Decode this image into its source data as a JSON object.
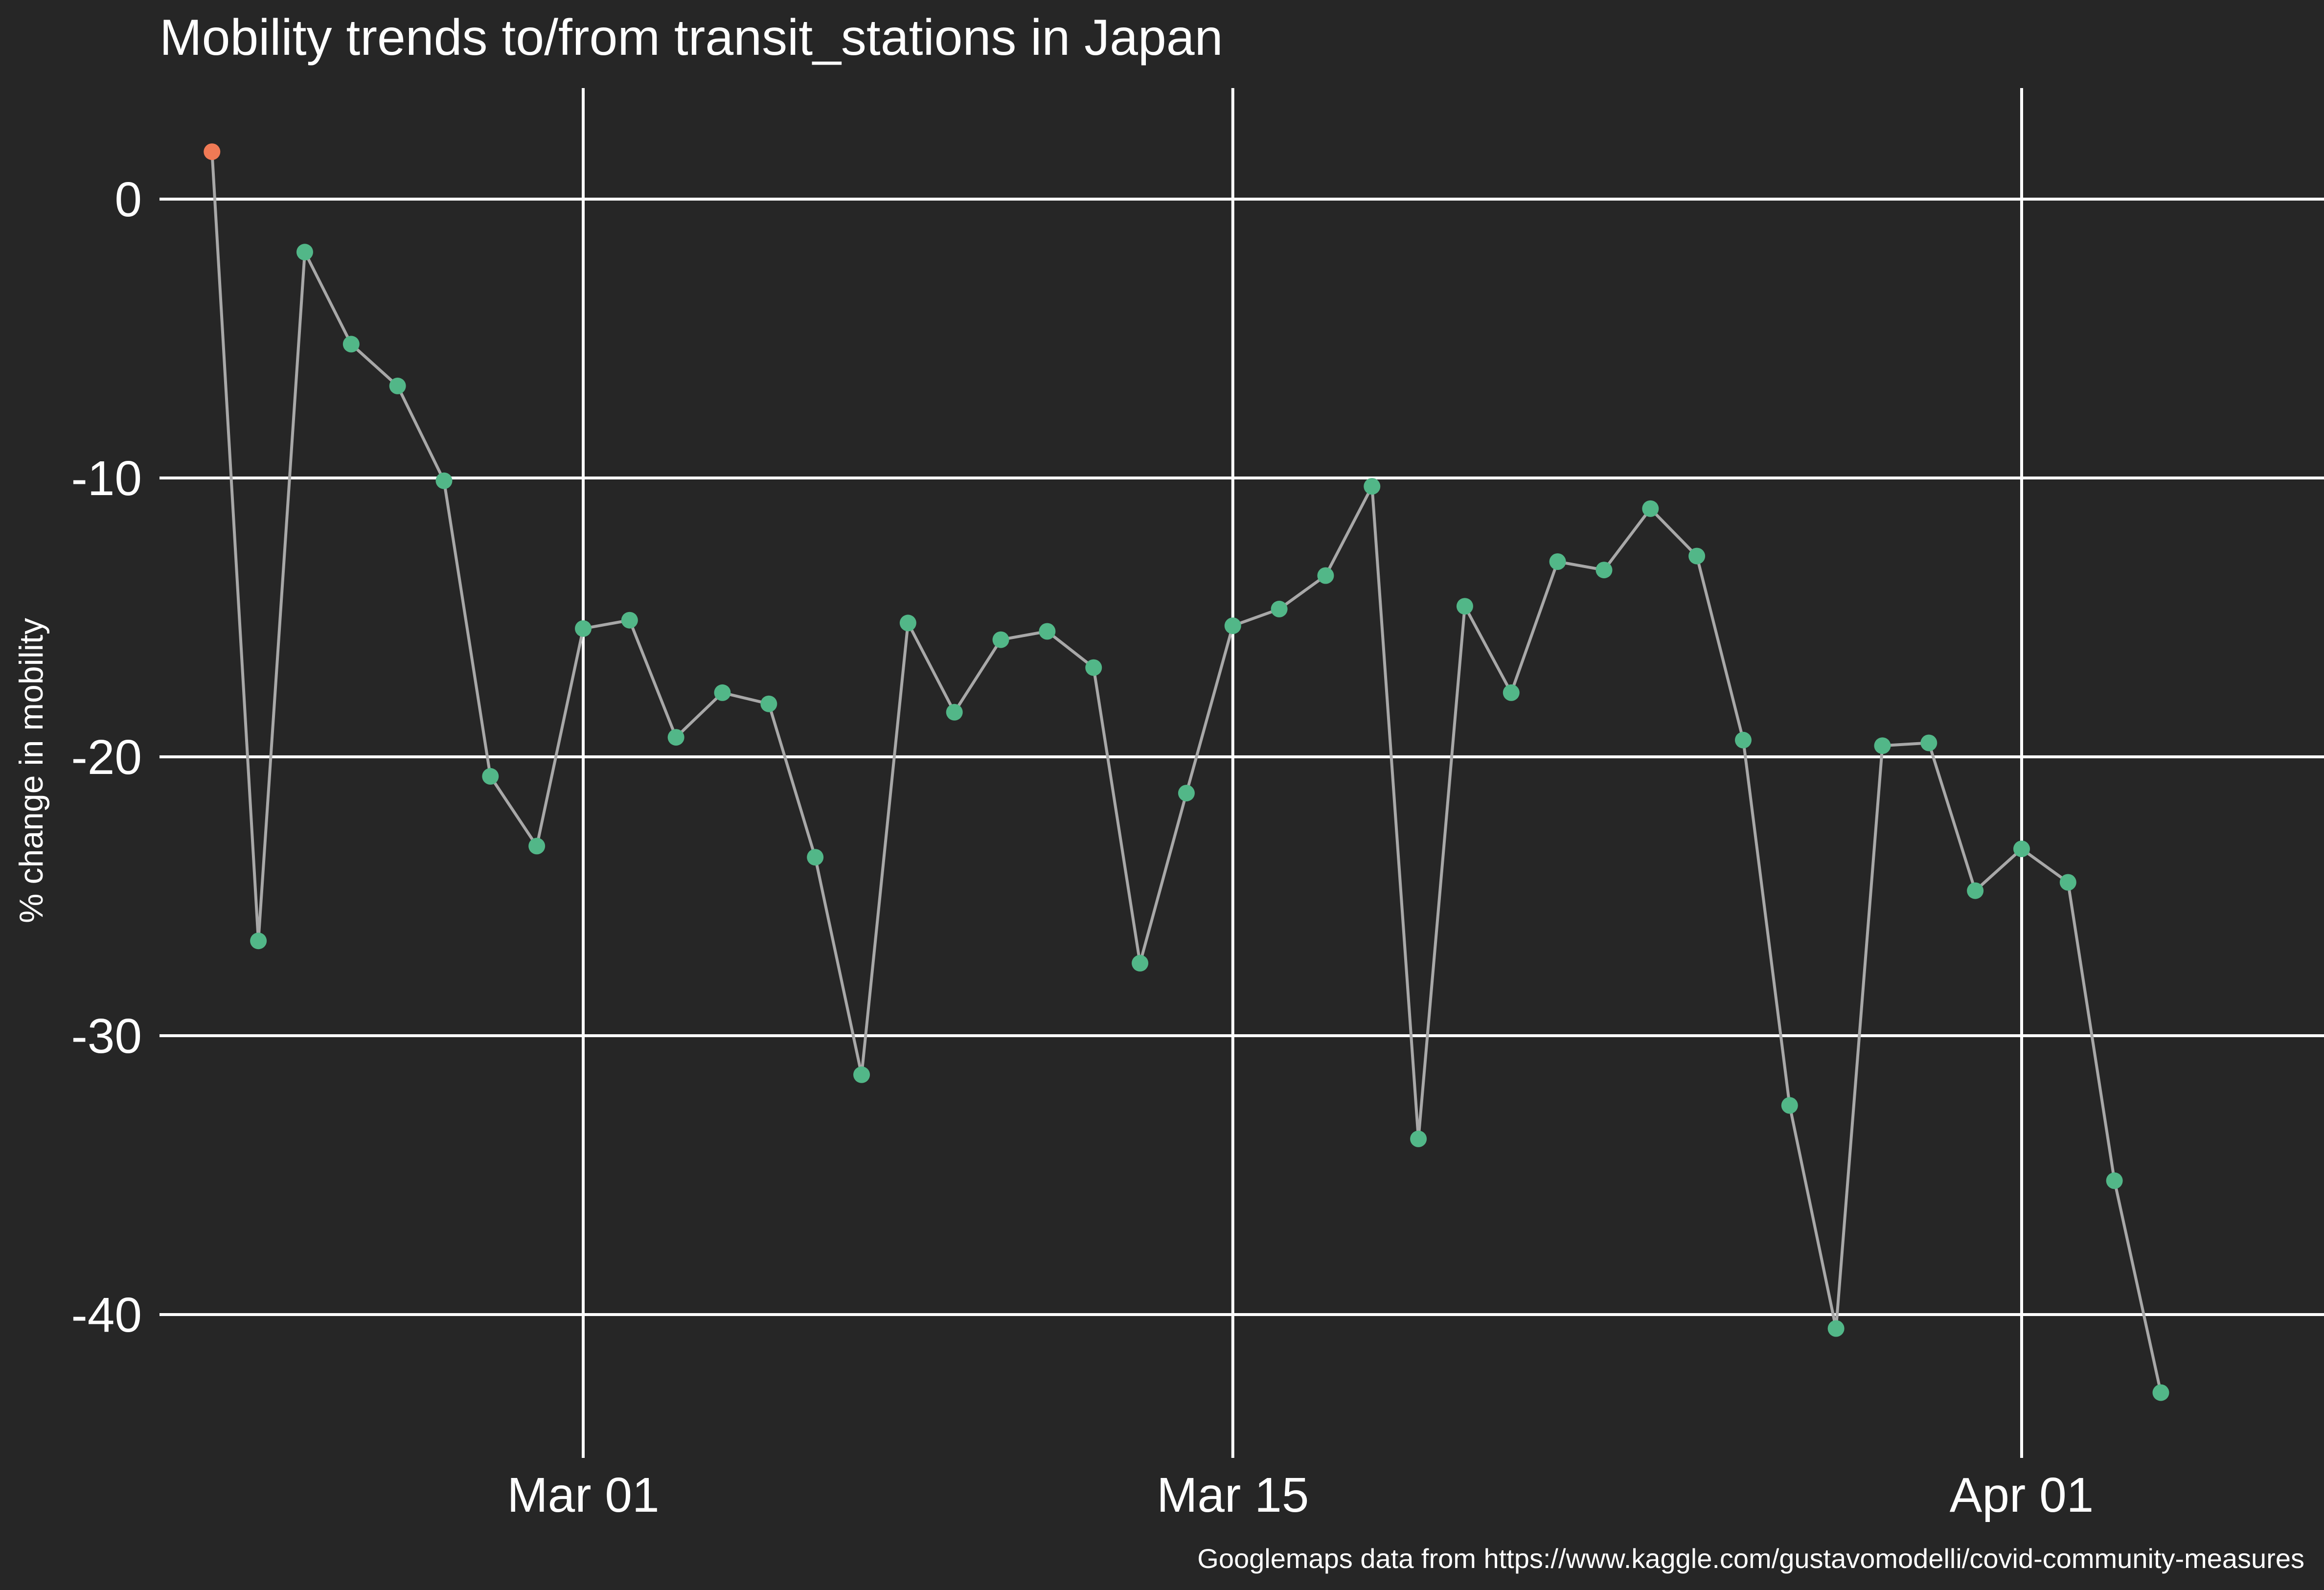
{
  "chart_data": {
    "type": "line",
    "title": "Mobility trends to/from transit_stations in Japan",
    "ylabel": "% change in mobility",
    "xlabel": "",
    "caption": "Googlemaps data from https://www.kaggle.com/gustavomodelli/covid-community-measures",
    "x_ticks": [
      {
        "date": "2020-03-01",
        "label": "Mar 01"
      },
      {
        "date": "2020-03-15",
        "label": "Mar 15"
      },
      {
        "date": "2020-04-01",
        "label": "Apr 01"
      }
    ],
    "y_ticks": [
      0,
      -10,
      -20,
      -30,
      -40
    ],
    "xlim": [
      "2020-02-20",
      "2020-04-05"
    ],
    "ylim": [
      -45,
      3
    ],
    "grid": true,
    "legend": "none",
    "colors": {
      "background": "#262626",
      "line": "#a8a8a8",
      "point": "#52b788",
      "first_point": "#f07a55",
      "grid": "#ffffff",
      "text": "#ffffff"
    },
    "series": [
      {
        "x": [
          "2020-02-22",
          "2020-02-23",
          "2020-02-24",
          "2020-02-25",
          "2020-02-26",
          "2020-02-27",
          "2020-02-28",
          "2020-02-29",
          "2020-03-01",
          "2020-03-02",
          "2020-03-03",
          "2020-03-04",
          "2020-03-05",
          "2020-03-06",
          "2020-03-07",
          "2020-03-08",
          "2020-03-09",
          "2020-03-10",
          "2020-03-11",
          "2020-03-12",
          "2020-03-13",
          "2020-03-14",
          "2020-03-15",
          "2020-03-16",
          "2020-03-17",
          "2020-03-18",
          "2020-03-19",
          "2020-03-20",
          "2020-03-21",
          "2020-03-22",
          "2020-03-23",
          "2020-03-24",
          "2020-03-25",
          "2020-03-26",
          "2020-03-27",
          "2020-03-28",
          "2020-03-29",
          "2020-03-30",
          "2020-03-31",
          "2020-04-01",
          "2020-04-02",
          "2020-04-03",
          "2020-04-04",
          "2020-04-05"
        ],
        "values": [
          1.7,
          -26.6,
          -1.9,
          -5.2,
          -6.7,
          -10.1,
          -20.7,
          -23.2,
          -15.4,
          -15.1,
          -19.3,
          -17.7,
          -18.1,
          -23.6,
          -31.4,
          -15.2,
          -18.4,
          -15.8,
          -15.5,
          -16.8,
          -27.4,
          -21.3,
          -15.3,
          -14.7,
          -13.5,
          -10.3,
          -33.7,
          -14.6,
          -17.7,
          -13.0,
          -13.3,
          -11.1,
          -12.8,
          -19.4,
          -32.5,
          -40.5,
          -19.6,
          -19.5,
          -24.8,
          -23.3,
          -24.5,
          -35.2,
          -42.8,
          null
        ]
      }
    ]
  }
}
